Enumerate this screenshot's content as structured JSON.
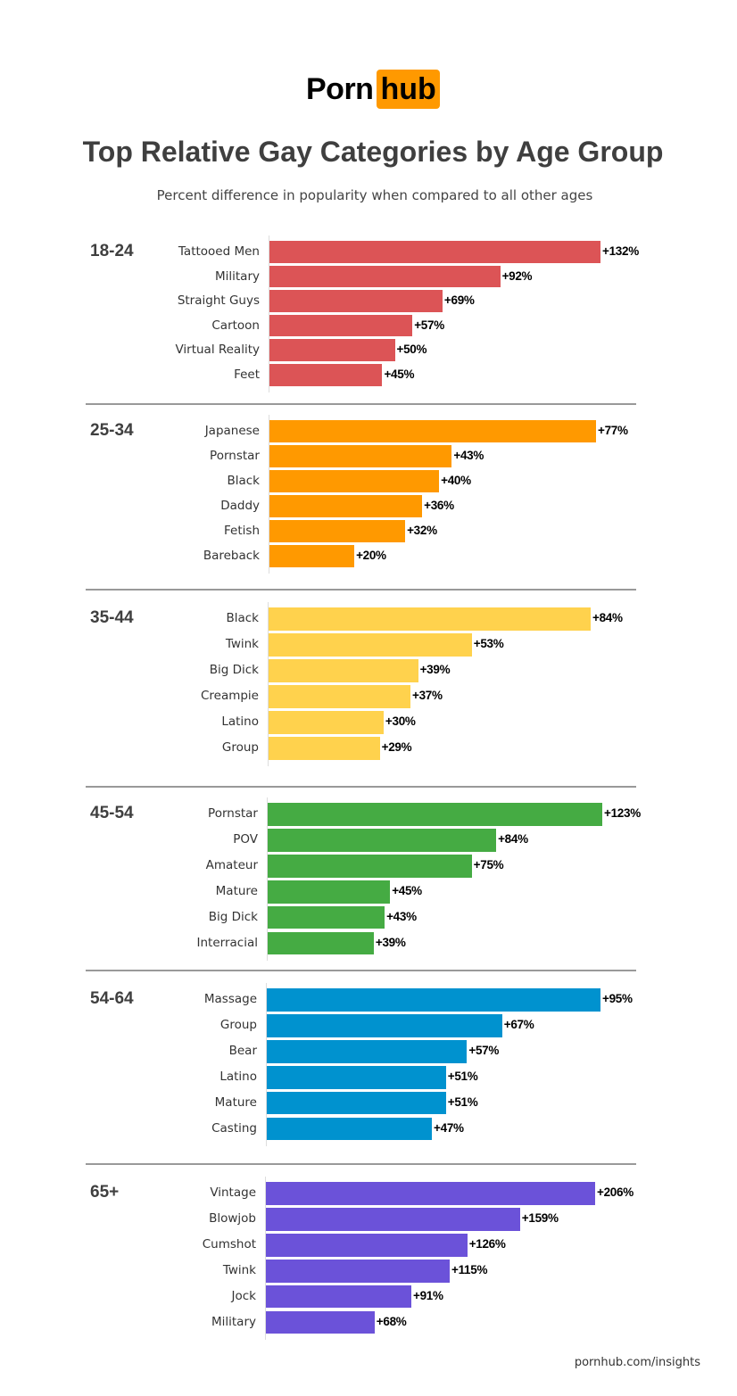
{
  "logo": {
    "text_left": "Porn",
    "text_right": "hub",
    "color": "#FF9900"
  },
  "chart_data": {
    "type": "bar",
    "orientation": "horizontal",
    "title": "Top Relative Gay Categories by Age Group",
    "subtitle": "Percent difference in popularity when compared to all other ages",
    "value_unit": "%",
    "groups": [
      {
        "name": "18-24",
        "color": "#DC5456",
        "categories": [
          "Tattooed Men",
          "Military",
          "Straight Guys",
          "Cartoon",
          "Virtual Reality",
          "Feet"
        ],
        "values": [
          132,
          92,
          69,
          57,
          50,
          45
        ],
        "labels": [
          "+132%",
          "+92%",
          "+69%",
          "+57%",
          "+50%",
          "+45%"
        ]
      },
      {
        "name": "25-34",
        "color": "#FF9900",
        "categories": [
          "Japanese",
          "Pornstar",
          "Black",
          "Daddy",
          "Fetish",
          "Bareback"
        ],
        "values": [
          77,
          43,
          40,
          36,
          32,
          20
        ],
        "labels": [
          "+77%",
          "+43%",
          "+40%",
          "+36%",
          "+32%",
          "+20%"
        ]
      },
      {
        "name": "35-44",
        "color": "#FFD24D",
        "categories": [
          "Black",
          "Twink",
          "Big Dick",
          "Creampie",
          "Latino",
          "Group"
        ],
        "values": [
          84,
          53,
          39,
          37,
          30,
          29
        ],
        "labels": [
          "+84%",
          "+53%",
          "+39%",
          "+37%",
          "+30%",
          "+29%"
        ]
      },
      {
        "name": "45-54",
        "color": "#45AB43",
        "categories": [
          "Pornstar",
          "POV",
          "Amateur",
          "Mature",
          "Big Dick",
          "Interracial"
        ],
        "values": [
          123,
          84,
          75,
          45,
          43,
          39
        ],
        "labels": [
          "+123%",
          "+84%",
          "+75%",
          "+45%",
          "+43%",
          "+39%"
        ]
      },
      {
        "name": "54-64",
        "color": "#0092CF",
        "categories": [
          "Massage",
          "Group",
          "Bear",
          "Latino",
          "Mature",
          "Casting"
        ],
        "values": [
          95,
          67,
          57,
          51,
          51,
          47
        ],
        "labels": [
          "+95%",
          "+67%",
          "+57%",
          "+51%",
          "+51%",
          "+47%"
        ]
      },
      {
        "name": "65+",
        "color": "#6B52D9",
        "categories": [
          "Vintage",
          "Blowjob",
          "Cumshot",
          "Twink",
          "Jock",
          "Military"
        ],
        "values": [
          206,
          159,
          126,
          115,
          91,
          68
        ],
        "labels": [
          "+206%",
          "+159%",
          "+126%",
          "+115%",
          "+91%",
          "+68%"
        ]
      }
    ]
  },
  "footer": {
    "source": "pornhub.com/insights"
  }
}
